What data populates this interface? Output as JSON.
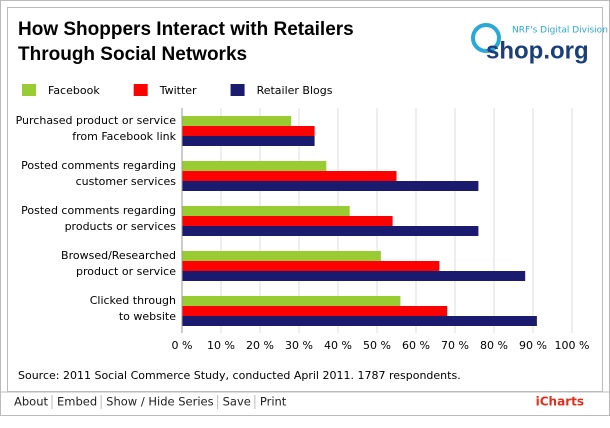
{
  "chart_data": {
    "type": "hbar",
    "title": [
      "How Shoppers Interact with Retailers",
      "Through Social Networks"
    ],
    "categories": [
      [
        "Purchased product or service",
        "from Facebook link"
      ],
      [
        "Posted comments regarding",
        "customer services"
      ],
      [
        "Posted comments regarding",
        "products or services"
      ],
      [
        "Browsed/Researched",
        "product or service"
      ],
      [
        "Clicked through",
        "to website"
      ]
    ],
    "series": [
      {
        "name": "Facebook",
        "color": "#99cc33",
        "values": [
          28,
          37,
          43,
          51,
          56
        ]
      },
      {
        "name": "Twitter",
        "color": "#ff0000",
        "values": [
          34,
          55,
          54,
          66,
          68
        ]
      },
      {
        "name": "Retailer Blogs",
        "color": "#1a1a6e",
        "values": [
          34,
          76,
          76,
          88,
          91
        ]
      }
    ],
    "xlim": [
      0,
      100
    ],
    "xticks": [
      {
        "value": 0,
        "label": "0 %"
      },
      {
        "value": 10,
        "label": "10 %"
      },
      {
        "value": 20,
        "label": "20 %"
      },
      {
        "value": 30,
        "label": "30 %"
      },
      {
        "value": 40,
        "label": "40 %"
      },
      {
        "value": 50,
        "label": "50 %"
      },
      {
        "value": 60,
        "label": "60 %"
      },
      {
        "value": 70,
        "label": "70 %"
      },
      {
        "value": 80,
        "label": "80 %"
      },
      {
        "value": 90,
        "label": "90 %"
      },
      {
        "value": 100,
        "label": "100 %"
      }
    ],
    "grid": true,
    "source": "Source: 2011 Social Commerce Study, conducted April 2011. 1787 respondents."
  },
  "logo": {
    "tagline": "NRF's Digital Division",
    "name": "shop.org"
  },
  "footer": {
    "links": [
      "About",
      "Embed",
      "Show / Hide Series",
      "Save",
      "Print"
    ],
    "brand": "iCharts"
  }
}
